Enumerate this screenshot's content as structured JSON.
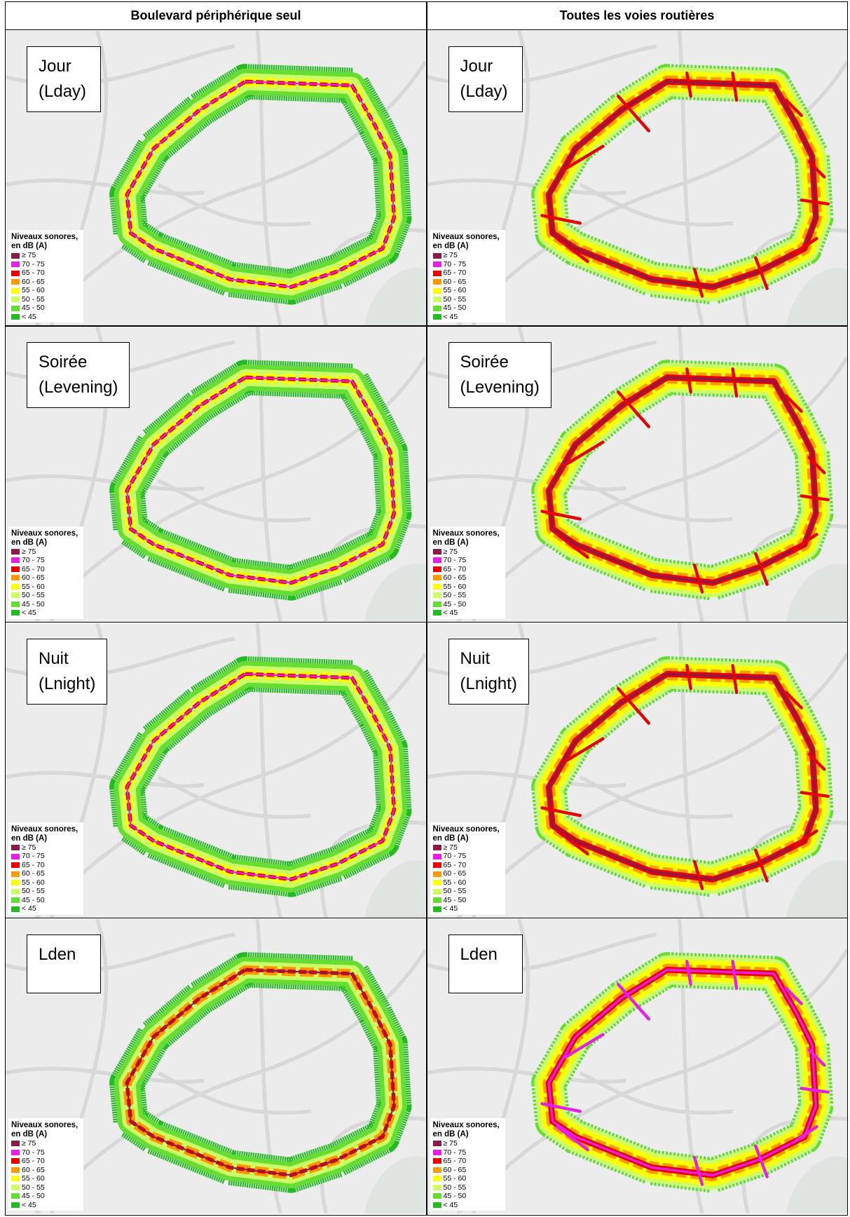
{
  "header": {
    "columns": [
      "Boulevard périphérique seul",
      "Toutes les voies routières"
    ]
  },
  "legend": {
    "title": [
      "Niveaux sonores,",
      "en dB (A)"
    ],
    "items": [
      {
        "label": "≥ 75",
        "color": "#8b1a4a"
      },
      {
        "label": "70 - 75",
        "color": "#e61ee6"
      },
      {
        "label": "65 - 70",
        "color": "#e60000"
      },
      {
        "label": "60 - 65",
        "color": "#ff9900"
      },
      {
        "label": "55 - 60",
        "color": "#ffff00"
      },
      {
        "label": "50 - 55",
        "color": "#ccff66"
      },
      {
        "label": "45 - 50",
        "color": "#66dd33"
      },
      {
        "label": "< 45",
        "color": "#22bb22"
      }
    ]
  },
  "rows": [
    {
      "label": [
        "Jour",
        "(Lday)"
      ]
    },
    {
      "label": [
        "Soirée",
        "(Levening)"
      ]
    },
    {
      "label": [
        "Nuit",
        "(Lnight)"
      ]
    },
    {
      "label": [
        "Lden"
      ]
    }
  ]
}
